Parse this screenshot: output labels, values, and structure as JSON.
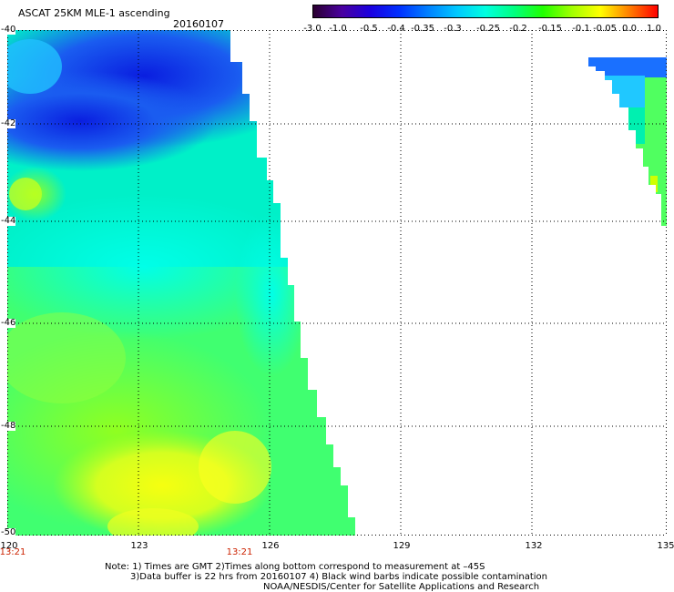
{
  "title": "ASCAT 25KM MLE-1 ascending",
  "date": "20160107",
  "colorbar": {
    "labels": [
      "-3.0",
      "-1.0",
      "-0.5",
      "-0.4",
      "-0.35",
      "-0.3",
      "-0.25",
      "-0.2",
      "-0.15",
      "-0.1",
      "-0.05",
      "0.0",
      "1.0"
    ],
    "colors": [
      "#2b0030",
      "#4a00a0",
      "#1a00e0",
      "#0030ff",
      "#0080ff",
      "#00c8ff",
      "#00ffe0",
      "#00ff80",
      "#20ff00",
      "#a0ff00",
      "#ffff00",
      "#ff8000",
      "#ff0000"
    ]
  },
  "map": {
    "lat_labels": [
      "-40",
      "-42",
      "-44",
      "-46",
      "-48",
      "-50"
    ],
    "lon_labels": [
      "120",
      "123",
      "126",
      "129",
      "132",
      "135"
    ],
    "time_labels": [
      "13:21",
      "13:21"
    ],
    "lon_range": [
      120,
      135
    ],
    "lat_range": [
      -40,
      -50
    ]
  },
  "notes": [
    "Note: 1) Times are GMT 2)Times along bottom correspond to measurement at –45S",
    "3)Data buffer is 22 hrs from 20160107 4) Black wind barbs indicate possible contamination",
    "NOAA/NESDIS/Center for Satellite Applications and Research"
  ]
}
